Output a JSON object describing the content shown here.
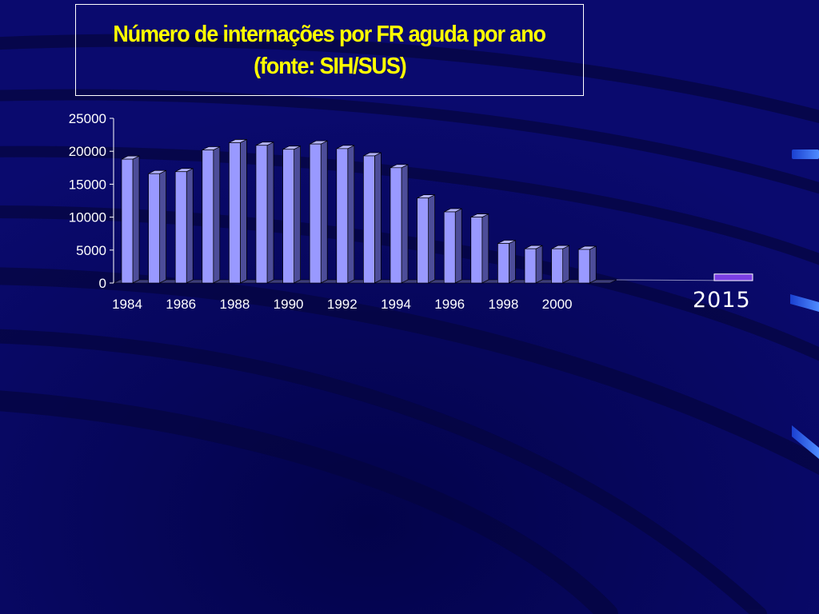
{
  "title": {
    "line1": "Número de internações por FR aguda por ano",
    "line2": "(fonte: SIH/SUS)"
  },
  "colors": {
    "background": "#0a0a6e",
    "title_text": "#ffff00",
    "bar_front": "#9999ff",
    "bar_side": "#4d4d99",
    "bar_top": "#b3b3ff",
    "highlight_bar": "#7b3fe4"
  },
  "chart_data": {
    "type": "bar",
    "title": "Número de internações por FR aguda por ano (fonte: SIH/SUS)",
    "x": [
      1984,
      1985,
      1986,
      1987,
      1988,
      1989,
      1990,
      1991,
      1992,
      1993,
      1994,
      1995,
      1996,
      1997,
      1998,
      1999,
      2000,
      2001
    ],
    "values": [
      18800,
      16600,
      16900,
      20200,
      21300,
      20900,
      20300,
      21100,
      20400,
      19300,
      17500,
      12900,
      10800,
      10000,
      6000,
      5200,
      5200,
      5100
    ],
    "x_tick_labels": [
      "1984",
      "1986",
      "1988",
      "1990",
      "1992",
      "1994",
      "1996",
      "1998",
      "2000"
    ],
    "y_ticks": [
      0,
      5000,
      10000,
      15000,
      20000,
      25000
    ],
    "ylim": [
      0,
      25000
    ],
    "grid": false,
    "xlabel": "",
    "ylabel": "",
    "extra_bar": {
      "label": "2015",
      "value": 1000
    }
  }
}
